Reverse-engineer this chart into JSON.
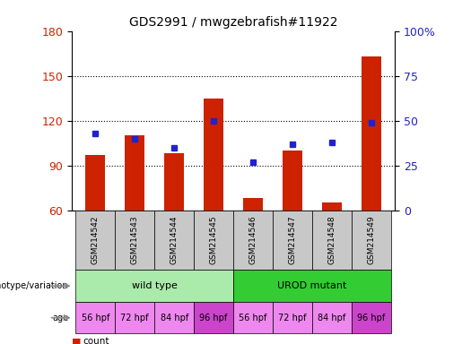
{
  "title": "GDS2991 / mwgzebrafish#11922",
  "samples": [
    "GSM214542",
    "GSM214543",
    "GSM214544",
    "GSM214545",
    "GSM214546",
    "GSM214547",
    "GSM214548",
    "GSM214549"
  ],
  "count_values": [
    97,
    110,
    98,
    135,
    68,
    100,
    65,
    163
  ],
  "percentile_values": [
    43,
    40,
    35,
    50,
    27,
    37,
    38,
    49
  ],
  "ylim_left": [
    60,
    180
  ],
  "ylim_right": [
    0,
    100
  ],
  "yticks_left": [
    60,
    90,
    120,
    150,
    180
  ],
  "yticks_right": [
    0,
    25,
    50,
    75,
    100
  ],
  "ytick_labels_right": [
    "0",
    "25",
    "50",
    "75",
    "100%"
  ],
  "bar_color": "#cc2200",
  "dot_color": "#2222cc",
  "bar_width": 0.5,
  "genotype_groups": [
    {
      "label": "wild type",
      "start": 0,
      "end": 4,
      "color": "#aaeaaa"
    },
    {
      "label": "UROD mutant",
      "start": 4,
      "end": 8,
      "color": "#33cc33"
    }
  ],
  "age_labels": [
    "56 hpf",
    "72 hpf",
    "84 hpf",
    "96 hpf",
    "56 hpf",
    "72 hpf",
    "84 hpf",
    "96 hpf"
  ],
  "age_colors": [
    "#ee88ee",
    "#ee88ee",
    "#ee88ee",
    "#cc44cc",
    "#ee88ee",
    "#ee88ee",
    "#ee88ee",
    "#cc44cc"
  ],
  "legend_count_color": "#cc2200",
  "legend_dot_color": "#2222cc",
  "xlabel_genotype": "genotype/variation",
  "xlabel_age": "age",
  "bg_color": "#ffffff",
  "tick_label_color_left": "#cc2200",
  "tick_label_color_right": "#2222cc",
  "sample_bg_color": "#c8c8c8"
}
